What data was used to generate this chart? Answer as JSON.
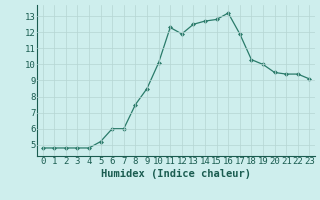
{
  "x": [
    0,
    1,
    2,
    3,
    4,
    5,
    6,
    7,
    8,
    9,
    10,
    11,
    12,
    13,
    14,
    15,
    16,
    17,
    18,
    19,
    20,
    21,
    22,
    23
  ],
  "y": [
    4.8,
    4.8,
    4.8,
    4.8,
    4.8,
    5.2,
    6.0,
    6.0,
    7.5,
    8.5,
    10.1,
    12.3,
    11.9,
    12.5,
    12.7,
    12.8,
    13.2,
    11.9,
    10.3,
    10.0,
    9.5,
    9.4,
    9.4,
    9.1
  ],
  "xlim": [
    -0.5,
    23.5
  ],
  "ylim": [
    4.3,
    13.7
  ],
  "yticks": [
    5,
    6,
    7,
    8,
    9,
    10,
    11,
    12,
    13
  ],
  "xticks": [
    0,
    1,
    2,
    3,
    4,
    5,
    6,
    7,
    8,
    9,
    10,
    11,
    12,
    13,
    14,
    15,
    16,
    17,
    18,
    19,
    20,
    21,
    22,
    23
  ],
  "xlabel": "Humidex (Indice chaleur)",
  "line_color": "#2a7b6a",
  "marker": "D",
  "marker_size": 2.0,
  "bg_color": "#ceeeed",
  "grid_color": "#b5d5d3",
  "text_color": "#1a5c50",
  "tick_font_size": 6.5,
  "xlabel_font_size": 7.5
}
